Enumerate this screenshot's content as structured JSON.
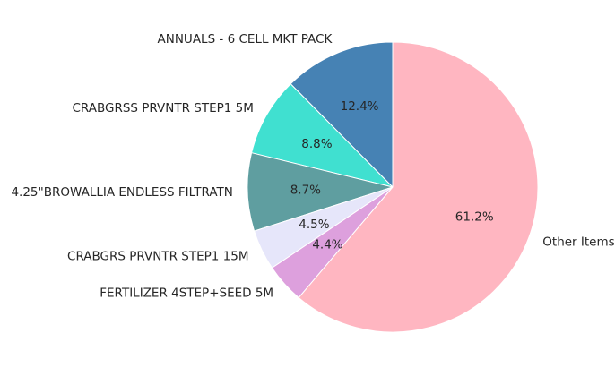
{
  "chart_data": {
    "type": "pie",
    "start_angle_deg": 90,
    "direction": "counterclockwise",
    "slices": [
      {
        "label": "ANNUALS - 6 CELL MKT PACK",
        "value": 12.4,
        "pct_label": "12.4%",
        "color": "#4682B4"
      },
      {
        "label": "CRABGRSS PRVNTR STEP1 5M",
        "value": 8.8,
        "pct_label": "8.8%",
        "color": "#40E0D0"
      },
      {
        "label": "4.25\"BROWALLIA ENDLESS FILTRATN",
        "value": 8.7,
        "pct_label": "8.7%",
        "color": "#5F9EA0"
      },
      {
        "label": "CRABGRS PRVNTR STEP1 15M",
        "value": 4.5,
        "pct_label": "4.5%",
        "color": "#E6E6FA"
      },
      {
        "label": "FERTILIZER 4STEP+SEED 5M",
        "value": 4.4,
        "pct_label": "4.4%",
        "color": "#DDA0DD"
      },
      {
        "label": "Other Items",
        "value": 61.2,
        "pct_label": "61.2%",
        "color": "#FFB6C1"
      }
    ]
  }
}
